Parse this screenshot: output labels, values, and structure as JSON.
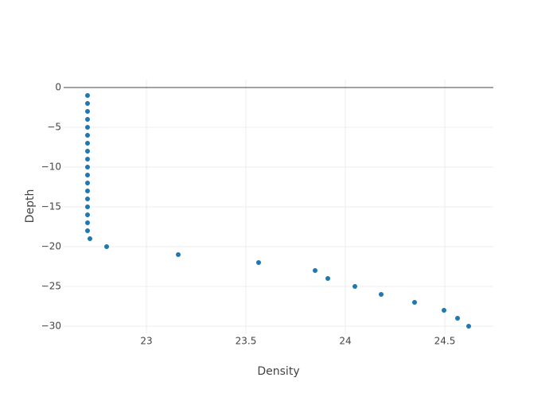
{
  "chart_data": {
    "type": "scatter",
    "x_label": "Density",
    "y_label": "Depth",
    "xlim": [
      22.584,
      24.744
    ],
    "ylim": [
      -31,
      1
    ],
    "xticks": [
      23,
      23.5,
      24,
      24.5
    ],
    "yticks": [
      0,
      {
        "value": -5,
        "label": "−5"
      },
      {
        "value": -10,
        "label": "−10"
      },
      {
        "value": -15,
        "label": "−15"
      },
      {
        "value": -20,
        "label": "−20"
      },
      {
        "value": -25,
        "label": "−25"
      },
      {
        "value": -30,
        "label": "−30"
      }
    ],
    "grid": true,
    "series": [
      {
        "color": "#1f77b4",
        "x": [
          22.704,
          22.704,
          22.704,
          22.704,
          22.704,
          22.704,
          22.704,
          22.704,
          22.704,
          22.704,
          22.704,
          22.704,
          22.704,
          22.704,
          22.704,
          22.704,
          22.704,
          22.704,
          22.716,
          22.8,
          23.16,
          23.564,
          23.848,
          23.912,
          24.048,
          24.18,
          24.348,
          24.496,
          24.564,
          24.62
        ],
        "values": [
          -1,
          -2,
          -3,
          -4,
          -5,
          -6,
          -7,
          -8,
          -9,
          -10,
          -11,
          -12,
          -13,
          -14,
          -15,
          -16,
          -17,
          -18,
          -19,
          -20,
          -21,
          -22,
          -23,
          -24,
          -25,
          -26,
          -27,
          -28,
          -29,
          -30
        ]
      }
    ]
  }
}
